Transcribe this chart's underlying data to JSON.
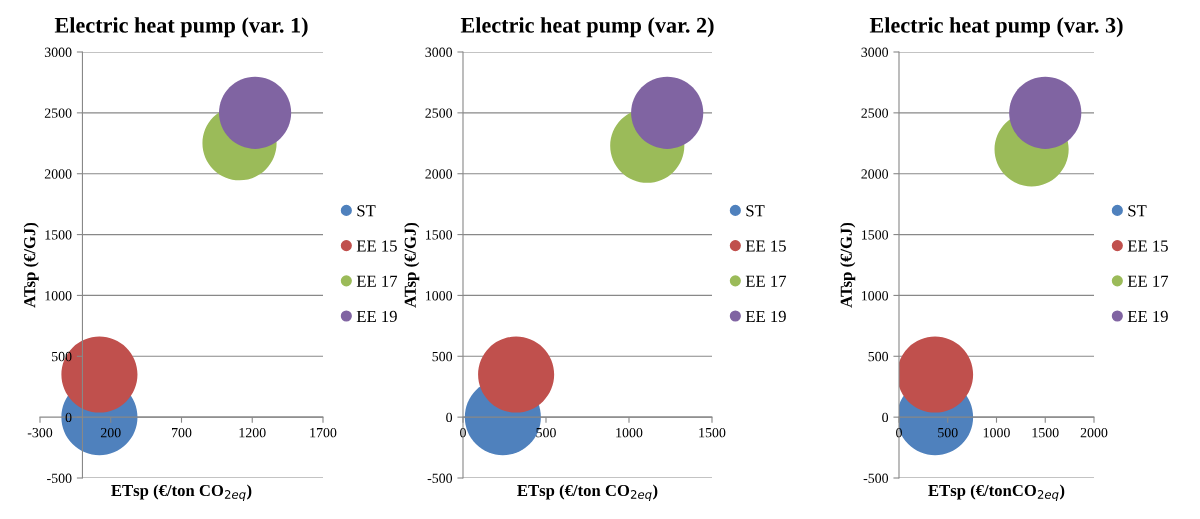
{
  "chart_data": [
    {
      "type": "bubble",
      "title": "Electric heat pump (var. 1)",
      "xlabel": "ETsp (€/ton CO$_{2eq}$)",
      "ylabel": "ATsp (€/GJ)",
      "xlim": [
        -300,
        1700
      ],
      "xticks": [
        -300,
        200,
        700,
        1200,
        1700
      ],
      "ylim": [
        -500,
        3000
      ],
      "yticks": [
        -500,
        0,
        500,
        1000,
        1500,
        2000,
        2500,
        3000
      ],
      "grid": "y",
      "legend": "right",
      "series": [
        {
          "name": "ST",
          "color": "#4f81bd",
          "x": [
            120
          ],
          "values": [
            0
          ],
          "sizes": [
            1
          ]
        },
        {
          "name": "EE 15",
          "color": "#c0504d",
          "x": [
            120
          ],
          "values": [
            350
          ],
          "sizes": [
            1
          ]
        },
        {
          "name": "EE 17",
          "color": "#9bbb59",
          "x": [
            1110
          ],
          "values": [
            2250
          ],
          "sizes": [
            0.95
          ]
        },
        {
          "name": "EE 19",
          "color": "#8064a2",
          "x": [
            1220
          ],
          "values": [
            2500
          ],
          "sizes": [
            0.9
          ]
        }
      ]
    },
    {
      "type": "bubble",
      "title": "Electric heat pump (var. 2)",
      "xlabel": "ETsp (€/ton CO$_{2eq}$)",
      "ylabel": "ATsp (€/GJ)",
      "xlim": [
        0,
        1500
      ],
      "xticks": [
        0,
        500,
        1000,
        1500
      ],
      "ylim": [
        -500,
        3000
      ],
      "yticks": [
        -500,
        0,
        500,
        1000,
        1500,
        2000,
        2500,
        3000
      ],
      "grid": "y",
      "legend": "right",
      "series": [
        {
          "name": "ST",
          "color": "#4f81bd",
          "x": [
            240
          ],
          "values": [
            0
          ],
          "sizes": [
            1
          ]
        },
        {
          "name": "EE 15",
          "color": "#c0504d",
          "x": [
            320
          ],
          "values": [
            350
          ],
          "sizes": [
            1
          ]
        },
        {
          "name": "EE 17",
          "color": "#9bbb59",
          "x": [
            1110
          ],
          "values": [
            2230
          ],
          "sizes": [
            0.95
          ]
        },
        {
          "name": "EE 19",
          "color": "#8064a2",
          "x": [
            1230
          ],
          "values": [
            2500
          ],
          "sizes": [
            0.9
          ]
        }
      ]
    },
    {
      "type": "bubble",
      "title": "Electric heat pump (var. 3)",
      "xlabel": "ETsp (€/tonCO$_{2eq}$)",
      "ylabel": "ATsp (€/GJ)",
      "xlim": [
        0,
        2000
      ],
      "xticks": [
        0,
        500,
        1000,
        1500,
        2000
      ],
      "ylim": [
        -500,
        3000
      ],
      "yticks": [
        -500,
        0,
        500,
        1000,
        1500,
        2000,
        2500,
        3000
      ],
      "grid": "y",
      "legend": "right",
      "series": [
        {
          "name": "ST",
          "color": "#4f81bd",
          "x": [
            370
          ],
          "values": [
            0
          ],
          "sizes": [
            1
          ]
        },
        {
          "name": "EE 15",
          "color": "#c0504d",
          "x": [
            370
          ],
          "values": [
            350
          ],
          "sizes": [
            1
          ]
        },
        {
          "name": "EE 17",
          "color": "#9bbb59",
          "x": [
            1360
          ],
          "values": [
            2200
          ],
          "sizes": [
            0.95
          ]
        },
        {
          "name": "EE 19",
          "color": "#8064a2",
          "x": [
            1500
          ],
          "values": [
            2500
          ],
          "sizes": [
            0.9
          ]
        }
      ]
    }
  ]
}
